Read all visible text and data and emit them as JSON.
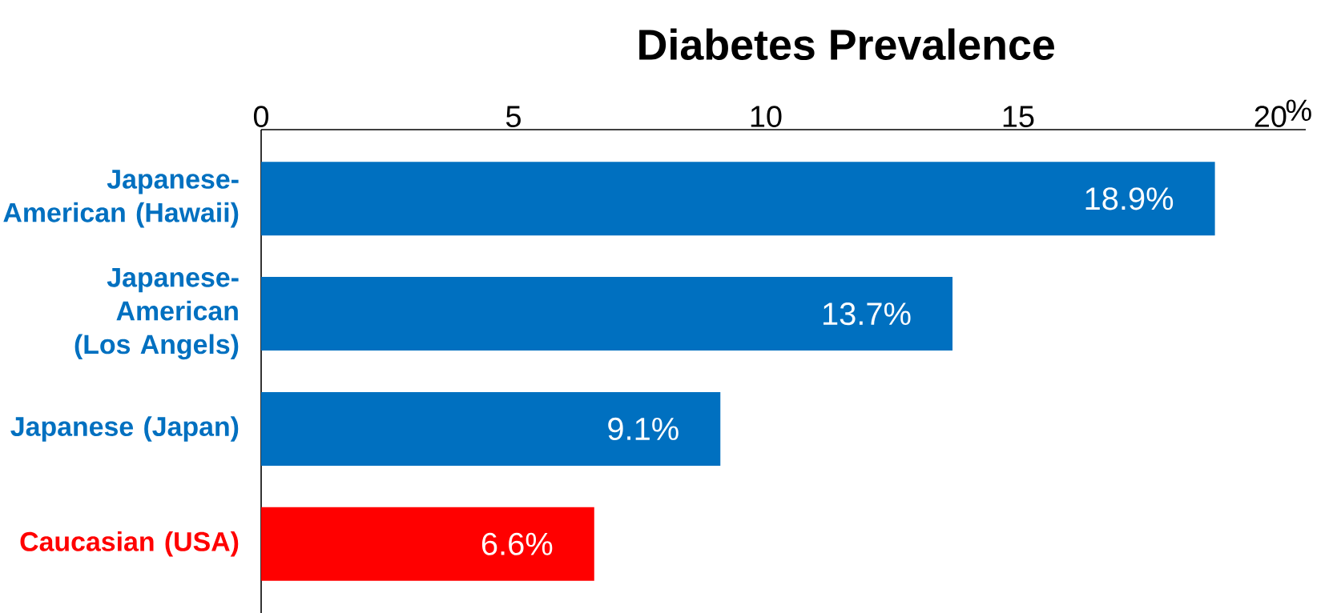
{
  "chart_data": {
    "type": "bar",
    "orientation": "horizontal",
    "title": "Diabetes Prevalence",
    "xlabel": "%",
    "categories": [
      "Japanese-American (Hawaii)",
      "Japanese-American (Los Angels)",
      "Japanese (Japan)",
      "Caucasian (USA)"
    ],
    "values": [
      18.9,
      13.7,
      9.1,
      6.6
    ],
    "colors": [
      "#0070c0",
      "#0070c0",
      "#0070c0",
      "#ff0000"
    ],
    "value_labels": [
      "18.9%",
      "13.7%",
      "9.1%",
      "6.6%"
    ],
    "xlim": [
      0,
      20.7
    ],
    "xticks": [
      0,
      5,
      10,
      15,
      20
    ]
  }
}
